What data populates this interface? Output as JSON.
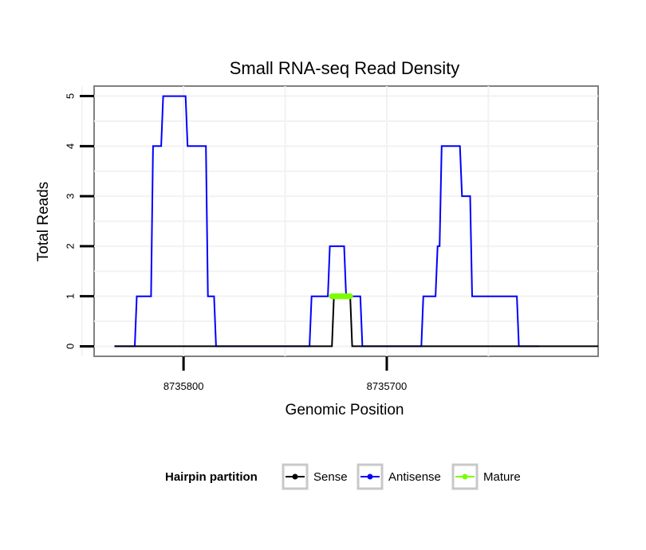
{
  "chart_data": {
    "type": "line",
    "title": "Small RNA-seq Read Density",
    "xlabel": "Genomic Position",
    "ylabel": "Total Reads",
    "x_reversed": true,
    "xlim": [
      8735844,
      8735596
    ],
    "ylim": [
      -0.2,
      5.2
    ],
    "xticks": [
      8735800,
      8735700
    ],
    "xtick_labels": [
      "8735800",
      "8735700"
    ],
    "yticks": [
      0,
      1,
      2,
      3,
      4,
      5
    ],
    "ytick_labels": [
      "0",
      "1",
      "2",
      "3",
      "4",
      "5"
    ],
    "grid": true,
    "legend": {
      "title": "Hairpin partition",
      "position": "bottom",
      "entries": [
        {
          "name": "Sense",
          "color": "#000000"
        },
        {
          "name": "Antisense",
          "color": "#0000ff"
        },
        {
          "name": "Mature",
          "color": "#7cfc00"
        }
      ]
    },
    "series": [
      {
        "name": "Antisense",
        "color": "#0000ff",
        "x": [
          8735834,
          8735824,
          8735823,
          8735816,
          8735815,
          8735811,
          8735810,
          8735799,
          8735798,
          8735789,
          8735788,
          8735785,
          8735784,
          8735738,
          8735737,
          8735729,
          8735728,
          8735721,
          8735720,
          8735713,
          8735712,
          8735683,
          8735682,
          8735676,
          8735675,
          8735674,
          8735673,
          8735664,
          8735663,
          8735659,
          8735658,
          8735636,
          8735635,
          8735633,
          8735632,
          8735629,
          8735628,
          8735626,
          8735625
        ],
        "y": [
          0,
          0,
          1,
          1,
          4,
          4,
          5,
          5,
          4,
          4,
          1,
          1,
          0,
          0,
          1,
          1,
          2,
          2,
          1,
          1,
          0,
          0,
          1,
          1,
          2,
          2,
          4,
          4,
          3,
          3,
          1,
          1,
          0,
          0,
          0,
          0,
          0,
          0,
          0
        ]
      },
      {
        "name": "Sense",
        "color": "#000000",
        "x": [
          8735834,
          8735727,
          8735726,
          8735718,
          8735717,
          8735596
        ],
        "y": [
          0,
          0,
          1,
          1,
          0,
          0
        ]
      },
      {
        "name": "Mature",
        "color": "#7cfc00",
        "x": [
          8735727,
          8735718
        ],
        "y": [
          1,
          1
        ]
      }
    ]
  }
}
